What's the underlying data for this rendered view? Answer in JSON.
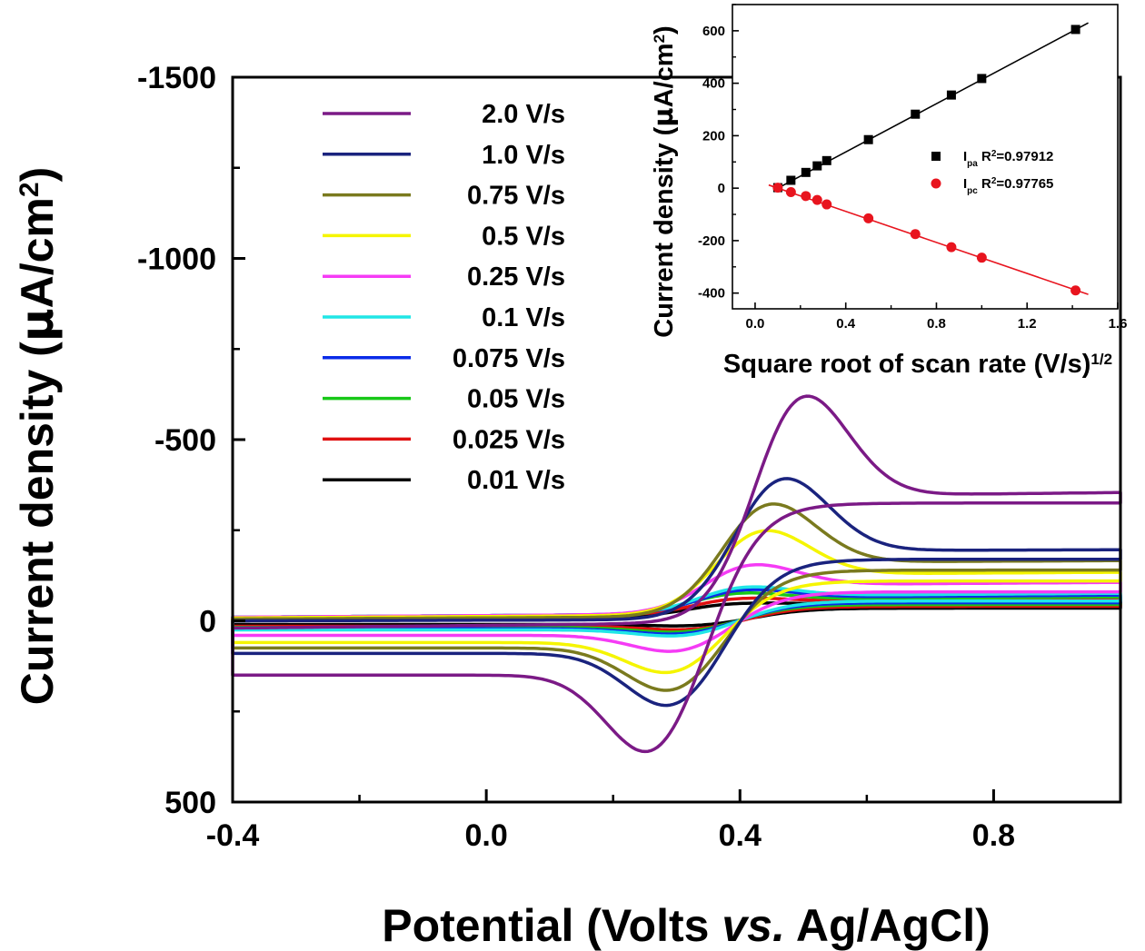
{
  "chart_data": [
    {
      "type": "line",
      "xlabel": "Potential (Volts vs. Ag/AgCl)",
      "xlabel_parts": [
        "Potential (Volts ",
        "vs.",
        " Ag/AgCl)"
      ],
      "ylabel": "Current density (µA/cm²)",
      "ylabel_parts": [
        "Current density (",
        "µ",
        "A/cm",
        "2",
        ")"
      ],
      "xlim": [
        -0.4,
        1.0
      ],
      "ylim": [
        500,
        -1500
      ],
      "x_ticks": [
        -0.4,
        0.0,
        0.4,
        0.8
      ],
      "x_tick_labels": [
        "-0.4",
        "0.0",
        "0.4",
        "0.8"
      ],
      "y_ticks": [
        -1500,
        -1000,
        -500,
        0,
        500
      ],
      "y_tick_labels": [
        "-1500",
        "-1000",
        "-500",
        "0",
        "500"
      ],
      "legend_position": "top-left",
      "series": [
        {
          "name": "2.0 V/s",
          "color": "#7B1A86",
          "a_peak": -646,
          "a_peak_x": 0.49,
          "c_peak": 417,
          "c_peak_x": 0.27,
          "fwd_base_end": -328,
          "fwd_start": 20,
          "rev_end": 150,
          "rev_base_end": -325
        },
        {
          "name": "1.0 V/s",
          "color": "#1A237E",
          "a_peak": -413,
          "a_peak_x": 0.46,
          "c_peak": 265,
          "c_peak_x": 0.3,
          "fwd_base_end": -190,
          "fwd_start": 0,
          "rev_end": 90,
          "rev_base_end": -170
        },
        {
          "name": "0.75 V/s",
          "color": "#7A7A1E",
          "a_peak": -335,
          "a_peak_x": 0.44,
          "c_peak": 218,
          "c_peak_x": 0.3,
          "fwd_base_end": -155,
          "fwd_start": -5,
          "rev_end": 75,
          "rev_base_end": -140
        },
        {
          "name": "0.5 V/s",
          "color": "#F5F500",
          "a_peak": -255,
          "a_peak_x": 0.43,
          "c_peak": 163,
          "c_peak_x": 0.3,
          "fwd_base_end": -120,
          "fwd_start": -8,
          "rev_end": 60,
          "rev_base_end": -110
        },
        {
          "name": "0.25 V/s",
          "color": "#F53BF5",
          "a_peak": -155,
          "a_peak_x": 0.41,
          "c_peak": 98,
          "c_peak_x": 0.31,
          "fwd_base_end": -90,
          "fwd_start": -10,
          "rev_end": 40,
          "rev_base_end": -80
        },
        {
          "name": "0.1 V/s",
          "color": "#20E6E6",
          "a_peak": -90,
          "a_peak_x": 0.4,
          "c_peak": 50,
          "c_peak_x": 0.32,
          "fwd_base_end": -60,
          "fwd_start": -10,
          "rev_end": 25,
          "rev_base_end": -55
        },
        {
          "name": "0.075 V/s",
          "color": "#0A2BE8",
          "a_peak": -82,
          "a_peak_x": 0.4,
          "c_peak": 44,
          "c_peak_x": 0.32,
          "fwd_base_end": -55,
          "fwd_start": -10,
          "rev_end": 22,
          "rev_base_end": -50
        },
        {
          "name": "0.05 V/s",
          "color": "#18C818",
          "a_peak": -72,
          "a_peak_x": 0.39,
          "c_peak": 38,
          "c_peak_x": 0.32,
          "fwd_base_end": -50,
          "fwd_start": -10,
          "rev_end": 18,
          "rev_base_end": -45
        },
        {
          "name": "0.025 V/s",
          "color": "#E01010",
          "a_peak": -58,
          "a_peak_x": 0.39,
          "c_peak": 30,
          "c_peak_x": 0.33,
          "fwd_base_end": -45,
          "fwd_start": -8,
          "rev_end": 15,
          "rev_base_end": -40
        },
        {
          "name": "0.01 V/s",
          "color": "#000000",
          "a_peak": -45,
          "a_peak_x": 0.38,
          "c_peak": 18,
          "c_peak_x": 0.34,
          "fwd_base_end": -40,
          "fwd_start": -5,
          "rev_end": 10,
          "rev_base_end": -35
        }
      ]
    },
    {
      "type": "scatter",
      "xlabel": "Square root of scan rate (V/s)1/2",
      "xlabel_parts": [
        "Square root of scan rate (V/s)",
        "1/2"
      ],
      "ylabel": "Current density (µA/cm²)",
      "ylabel_parts": [
        "Current density (",
        "µ",
        "A/cm",
        "2",
        ")"
      ],
      "xlim": [
        -0.1,
        1.6
      ],
      "ylim": [
        -460,
        700
      ],
      "x_ticks": [
        0.0,
        0.4,
        0.8,
        1.2,
        1.6
      ],
      "x_tick_labels": [
        "0.0",
        "0.4",
        "0.8",
        "1.2",
        "1.6"
      ],
      "y_ticks": [
        -400,
        -200,
        0,
        200,
        400,
        600
      ],
      "y_tick_labels": [
        "-400",
        "-200",
        "0",
        "200",
        "400",
        "600"
      ],
      "legend_position": "right",
      "series": [
        {
          "name": "Ipa R2=0.97912",
          "label_main": "I",
          "label_sub": "pa",
          "label_r": " R",
          "label_sup": "2",
          "label_val": "=0.97912",
          "color": "#000000",
          "marker": "square",
          "fit": [
            0.1,
            0,
            1.47,
            630
          ],
          "x": [
            0.1,
            0.158,
            0.224,
            0.274,
            0.316,
            0.5,
            0.707,
            0.866,
            1.0,
            1.414
          ],
          "y": [
            2,
            30,
            60,
            85,
            105,
            185,
            282,
            355,
            418,
            605
          ]
        },
        {
          "name": "Ipc R2=0.97765",
          "label_main": "I",
          "label_sub": "pc",
          "label_r": " R",
          "label_sup": "2",
          "label_val": "=0.97765",
          "color": "#E8141E",
          "marker": "circle",
          "fit": [
            0.06,
            12,
            1.47,
            -405
          ],
          "x": [
            0.1,
            0.158,
            0.224,
            0.274,
            0.316,
            0.5,
            0.707,
            0.866,
            1.0,
            1.414
          ],
          "y": [
            2,
            -15,
            -30,
            -45,
            -62,
            -115,
            -175,
            -225,
            -265,
            -390
          ]
        }
      ]
    }
  ]
}
